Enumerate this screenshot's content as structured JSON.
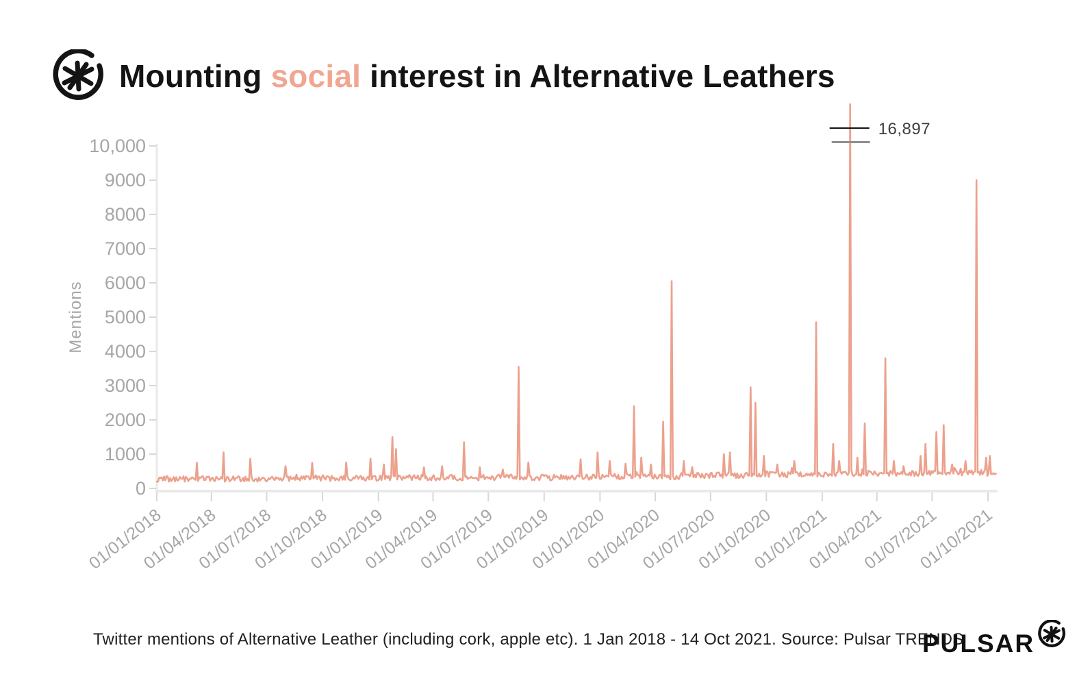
{
  "header": {
    "title_part1": "Mounting ",
    "title_highlight": "social",
    "title_part2": " interest in Alternative Leathers"
  },
  "caption": {
    "text": "Twitter mentions of Alternative Leather (including cork, apple etc). 1 Jan 2018 - 14 Oct 2021. Source: Pulsar TRENDS"
  },
  "footer": {
    "brand": "PULSAR"
  },
  "colors": {
    "line": "#ECA18D",
    "title_accent": "#F1A692",
    "axis_line": "#E9E9E9",
    "tick_mark": "#D8D8D8",
    "axis_text": "#A6A6A6",
    "annotation_text": "#3E3E3E",
    "annotation_black_line": "#111111",
    "annotation_gray_line": "#8F8F8F"
  },
  "chart_data": {
    "type": "line",
    "title": "Mounting social interest in Alternative Leathers",
    "ylabel": "Mentions",
    "xlabel": "",
    "ylim": [
      0,
      10000
    ],
    "grid": false,
    "legend_position": "none",
    "y_ticks": [
      {
        "v": 0,
        "label": "0"
      },
      {
        "v": 1000,
        "label": "1000"
      },
      {
        "v": 2000,
        "label": "2000"
      },
      {
        "v": 3000,
        "label": "3000"
      },
      {
        "v": 4000,
        "label": "4000"
      },
      {
        "v": 5000,
        "label": "5000"
      },
      {
        "v": 6000,
        "label": "6000"
      },
      {
        "v": 7000,
        "label": "7000"
      },
      {
        "v": 8000,
        "label": "8000"
      },
      {
        "v": 9000,
        "label": "9000"
      },
      {
        "v": 10000,
        "label": "10,000"
      }
    ],
    "x_ticks": [
      {
        "day": 0,
        "label": "01/01/2018"
      },
      {
        "day": 90,
        "label": "01/04/2018"
      },
      {
        "day": 181,
        "label": "01/07/2018"
      },
      {
        "day": 273,
        "label": "01/10/2018"
      },
      {
        "day": 365,
        "label": "01/01/2019"
      },
      {
        "day": 455,
        "label": "01/04/2019"
      },
      {
        "day": 546,
        "label": "01/07/2019"
      },
      {
        "day": 638,
        "label": "01/10/2019"
      },
      {
        "day": 730,
        "label": "01/01/2020"
      },
      {
        "day": 821,
        "label": "01/04/2020"
      },
      {
        "day": 912,
        "label": "01/07/2020"
      },
      {
        "day": 1004,
        "label": "01/10/2020"
      },
      {
        "day": 1096,
        "label": "01/01/2021"
      },
      {
        "day": 1186,
        "label": "01/04/2021"
      },
      {
        "day": 1277,
        "label": "01/07/2021"
      },
      {
        "day": 1369,
        "label": "01/10/2021"
      }
    ],
    "total_days": 1382,
    "sample_step_days": 2,
    "baseline_segments": [
      [
        0,
        180,
        265
      ],
      [
        180,
        365,
        285
      ],
      [
        365,
        550,
        295
      ],
      [
        550,
        730,
        305
      ],
      [
        730,
        860,
        330
      ],
      [
        860,
        1000,
        370
      ],
      [
        1000,
        1100,
        395
      ],
      [
        1100,
        1260,
        425
      ],
      [
        1260,
        1382,
        430
      ]
    ],
    "noise": {
      "amplitude": 170,
      "offset": 0.42,
      "spike_chance": 0.95,
      "spike_boost": 120
    },
    "peaks": [
      [
        65,
        750
      ],
      [
        110,
        1050
      ],
      [
        153,
        870
      ],
      [
        211,
        650
      ],
      [
        255,
        750
      ],
      [
        311,
        760
      ],
      [
        351,
        870
      ],
      [
        373,
        700
      ],
      [
        388,
        1500
      ],
      [
        394,
        1150
      ],
      [
        439,
        620
      ],
      [
        469,
        650
      ],
      [
        506,
        1350
      ],
      [
        531,
        620
      ],
      [
        570,
        550
      ],
      [
        595,
        3550
      ],
      [
        612,
        760
      ],
      [
        697,
        850
      ],
      [
        726,
        1050
      ],
      [
        746,
        800
      ],
      [
        772,
        720
      ],
      [
        786,
        2400
      ],
      [
        797,
        900
      ],
      [
        813,
        700
      ],
      [
        834,
        1950
      ],
      [
        848,
        6050
      ],
      [
        867,
        800
      ],
      [
        881,
        620
      ],
      [
        934,
        1000
      ],
      [
        943,
        1050
      ],
      [
        977,
        2950
      ],
      [
        986,
        2500
      ],
      [
        1000,
        950
      ],
      [
        1022,
        700
      ],
      [
        1050,
        800
      ],
      [
        1085,
        4850
      ],
      [
        1114,
        1300
      ],
      [
        1123,
        800
      ],
      [
        1142,
        16897
      ],
      [
        1154,
        900
      ],
      [
        1166,
        1900
      ],
      [
        1200,
        3800
      ],
      [
        1214,
        800
      ],
      [
        1230,
        650
      ],
      [
        1258,
        950
      ],
      [
        1266,
        1300
      ],
      [
        1284,
        1650
      ],
      [
        1296,
        1850
      ],
      [
        1310,
        700
      ],
      [
        1332,
        800
      ],
      [
        1350,
        9000
      ],
      [
        1365,
        900
      ],
      [
        1372,
        950
      ]
    ],
    "annotation": {
      "label": "16,897",
      "value": 16897,
      "day": 1142
    }
  }
}
